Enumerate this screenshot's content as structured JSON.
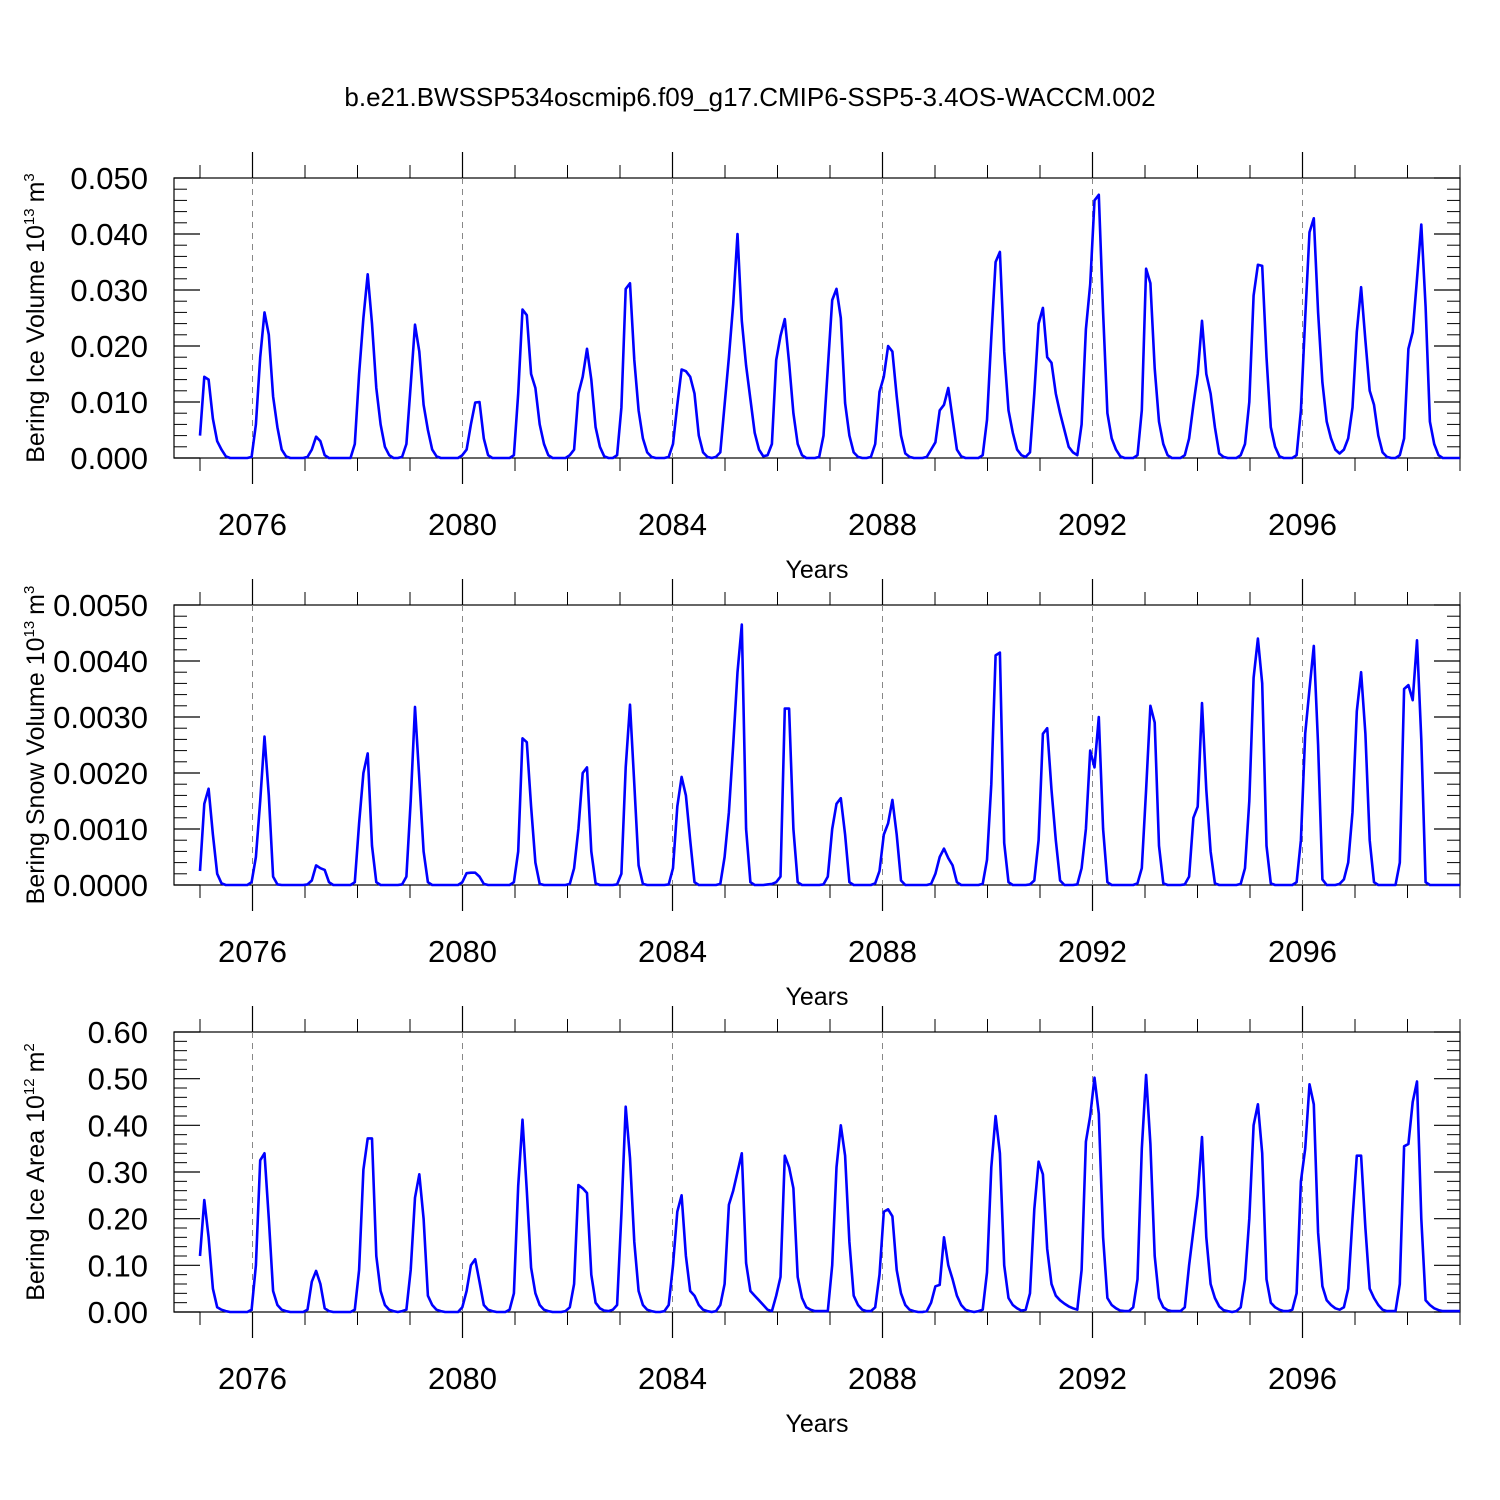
{
  "title": "b.e21.BWSSP534oscmip6.f09_g17.CMIP6-SSP5-3.4OS-WACCM.002",
  "chart_data": [
    {
      "type": "line",
      "ylabel_main": "Bering Ice Volume 10",
      "ylabel_exp": "13",
      "ylabel_unit": "m",
      "ylabel_unit_exp": "3",
      "xlabel": "Years",
      "x_start": 2075,
      "x_end": 2099,
      "xticks": [
        "2076",
        "2080",
        "2084",
        "2088",
        "2092",
        "2096"
      ],
      "yticks": [
        "0.000",
        "0.010",
        "0.020",
        "0.030",
        "0.040",
        "0.050"
      ],
      "ylim": [
        0,
        0.05
      ],
      "grid": "dashed vertical lines at labeled years",
      "series": [
        {
          "color": "#0000ff",
          "values": [
            0.004,
            0.0145,
            0.014,
            0.007,
            0.003,
            0.0015,
            0.0003,
            0,
            0,
            0,
            0,
            0,
            0.0002,
            0.006,
            0.018,
            0.026,
            0.022,
            0.011,
            0.0055,
            0.0015,
            0.0003,
            0,
            0,
            0,
            0,
            0.0002,
            0.0015,
            0.0038,
            0.003,
            0.0005,
            0,
            0,
            0,
            0,
            0,
            0,
            0.0025,
            0.015,
            0.025,
            0.0328,
            0.024,
            0.0125,
            0.006,
            0.002,
            0.0005,
            0,
            0,
            0.0002,
            0.0025,
            0.013,
            0.0238,
            0.019,
            0.0095,
            0.005,
            0.0015,
            0.0003,
            0,
            0,
            0,
            0,
            0,
            0.0005,
            0.0015,
            0.006,
            0.0099,
            0.01,
            0.0035,
            0.0005,
            0,
            0,
            0,
            0,
            0,
            0.0005,
            0.0115,
            0.0265,
            0.0255,
            0.015,
            0.0125,
            0.006,
            0.0025,
            0.0005,
            0,
            0,
            0,
            0,
            0.0005,
            0.0015,
            0.0115,
            0.0145,
            0.0195,
            0.014,
            0.0055,
            0.002,
            0.0003,
            0,
            0,
            0.0005,
            0.009,
            0.0302,
            0.0312,
            0.0175,
            0.0085,
            0.0035,
            0.001,
            0.0002,
            0,
            0,
            0,
            0.0002,
            0.0025,
            0.0095,
            0.0158,
            0.0155,
            0.0145,
            0.0115,
            0.004,
            0.001,
            0.0002,
            0,
            0.0002,
            0.001,
            0.0095,
            0.018,
            0.0275,
            0.04,
            0.0245,
            0.0165,
            0.0105,
            0.0045,
            0.0015,
            0.0003,
            0.0005,
            0.0025,
            0.0175,
            0.0218,
            0.0248,
            0.017,
            0.008,
            0.0025,
            0.0005,
            0,
            0,
            0,
            0.0002,
            0.004,
            0.016,
            0.0282,
            0.0302,
            0.025,
            0.0098,
            0.004,
            0.001,
            0.0002,
            0,
            0,
            0.0002,
            0.0025,
            0.0118,
            0.0145,
            0.02,
            0.019,
            0.011,
            0.004,
            0.0008,
            0.0002,
            0,
            0,
            0,
            0.0002,
            0.0015,
            0.0028,
            0.0085,
            0.0095,
            0.0125,
            0.007,
            0.0015,
            0.0003,
            0,
            0,
            0,
            0,
            0.0005,
            0.0068,
            0.0215,
            0.035,
            0.0368,
            0.019,
            0.0085,
            0.0045,
            0.0015,
            0.0005,
            0.0002,
            0.001,
            0.0115,
            0.024,
            0.0268,
            0.018,
            0.017,
            0.0115,
            0.008,
            0.005,
            0.002,
            0.001,
            0.0005,
            0.006,
            0.023,
            0.031,
            0.046,
            0.047,
            0.026,
            0.008,
            0.0035,
            0.0015,
            0.0003,
            0,
            0,
            0,
            0.0005,
            0.0085,
            0.0338,
            0.0312,
            0.016,
            0.0065,
            0.0025,
            0.0005,
            0,
            0,
            0,
            0.0005,
            0.0035,
            0.0095,
            0.015,
            0.0245,
            0.015,
            0.0115,
            0.0055,
            0.0008,
            0.0002,
            0,
            0,
            0,
            0.0005,
            0.0025,
            0.01,
            0.029,
            0.0345,
            0.0343,
            0.018,
            0.0055,
            0.002,
            0.0003,
            0,
            0,
            0,
            0.0005,
            0.0085,
            0.025,
            0.0403,
            0.0428,
            0.026,
            0.0135,
            0.0065,
            0.0035,
            0.0015,
            0.0008,
            0.0015,
            0.0035,
            0.009,
            0.0225,
            0.0305,
            0.021,
            0.012,
            0.0095,
            0.004,
            0.001,
            0.0002,
            0,
            0,
            0.0005,
            0.0035,
            0.0195,
            0.0225,
            0.032,
            0.0417,
            0.027,
            0.0065,
            0.0025,
            0.0005,
            0,
            0,
            0,
            0,
            0
          ]
        }
      ]
    },
    {
      "type": "line",
      "ylabel_main": "Bering Snow Volume 10",
      "ylabel_exp": "13",
      "ylabel_unit": "m",
      "ylabel_unit_exp": "3",
      "xlabel": "Years",
      "x_start": 2075,
      "x_end": 2099,
      "xticks": [
        "2076",
        "2080",
        "2084",
        "2088",
        "2092",
        "2096"
      ],
      "yticks": [
        "0.0000",
        "0.0010",
        "0.0020",
        "0.0030",
        "0.0040",
        "0.0050"
      ],
      "ylim": [
        0,
        0.005
      ],
      "grid": "dashed vertical lines at labeled years",
      "series": [
        {
          "color": "#0000ff",
          "values": [
            0.00025,
            0.00145,
            0.00172,
            0.0009,
            0.0002,
            3e-05,
            0,
            0,
            0,
            0,
            0,
            0,
            5e-05,
            0.0005,
            0.0015,
            0.00265,
            0.0016,
            0.00015,
            1e-05,
            0,
            0,
            0,
            0,
            0,
            0,
            1e-05,
            8e-05,
            0.00035,
            0.0003,
            0.00027,
            5e-05,
            0,
            0,
            0,
            0,
            0,
            5e-05,
            0.0011,
            0.002,
            0.00235,
            0.0007,
            5e-05,
            0,
            0,
            0,
            0,
            0,
            1e-05,
            0.00015,
            0.0015,
            0.00318,
            0.0019,
            0.0006,
            5e-05,
            0,
            0,
            0,
            0,
            0,
            0,
            0,
            5e-05,
            0.00021,
            0.00022,
            0.00022,
            0.00015,
            2e-05,
            0,
            0,
            0,
            0,
            0,
            0,
            5e-05,
            0.0006,
            0.00262,
            0.00255,
            0.0014,
            0.0004,
            2e-05,
            0,
            0,
            0,
            0,
            0,
            0,
            2e-05,
            0.0003,
            0.001,
            0.002,
            0.0021,
            0.0006,
            3e-05,
            0,
            0,
            0,
            0,
            1e-05,
            0.0002,
            0.0021,
            0.00322,
            0.0018,
            0.00035,
            2e-05,
            0,
            0,
            0,
            0,
            0,
            1e-05,
            0.0003,
            0.0014,
            0.00193,
            0.0016,
            0.0008,
            5e-05,
            0,
            0,
            0,
            0,
            0,
            2e-05,
            0.0005,
            0.0013,
            0.0025,
            0.0038,
            0.00465,
            0.001,
            5e-05,
            0,
            0,
            0,
            1e-05,
            2e-05,
            5e-05,
            0.00015,
            0.00315,
            0.00315,
            0.001,
            5e-05,
            0,
            0,
            0,
            0,
            0,
            1e-05,
            0.00015,
            0.001,
            0.00145,
            0.00155,
            0.0009,
            5e-05,
            0,
            0,
            0,
            0,
            0,
            3e-05,
            0.00025,
            0.0009,
            0.0011,
            0.00152,
            0.0009,
            8e-05,
            0,
            0,
            0,
            0,
            0,
            0,
            2e-05,
            0.0002,
            0.0005,
            0.00065,
            0.00048,
            0.00035,
            5e-05,
            0,
            0,
            0,
            0,
            0,
            2e-05,
            0.00045,
            0.0018,
            0.0041,
            0.00415,
            0.00075,
            5e-05,
            0,
            0,
            0,
            0,
            1e-05,
            8e-05,
            0.0008,
            0.0027,
            0.0028,
            0.0017,
            0.0008,
            8e-05,
            0,
            0,
            0,
            1e-05,
            0.0003,
            0.001,
            0.0024,
            0.0021,
            0.003,
            0.001,
            5e-05,
            0,
            0,
            0,
            0,
            0,
            0,
            3e-05,
            0.0003,
            0.0017,
            0.0032,
            0.0029,
            0.0007,
            3e-05,
            0,
            0,
            0,
            0,
            1e-05,
            0.00015,
            0.0012,
            0.0014,
            0.00325,
            0.0017,
            0.0006,
            3e-05,
            0,
            0,
            0,
            0,
            0,
            2e-05,
            0.0003,
            0.0015,
            0.0037,
            0.0044,
            0.0036,
            0.0007,
            3e-05,
            0,
            0,
            0,
            0,
            0,
            5e-05,
            0.0008,
            0.0027,
            0.0035,
            0.00427,
            0.0025,
            0.0001,
            0,
            0,
            0,
            2e-05,
            0.0001,
            0.0004,
            0.0013,
            0.0031,
            0.0038,
            0.0027,
            0.0008,
            5e-05,
            0,
            0,
            0,
            0,
            0,
            0.0004,
            0.0035,
            0.00357,
            0.0033,
            0.00437,
            0.0026,
            5e-05,
            0,
            0,
            0,
            0,
            0,
            0,
            0,
            0
          ]
        }
      ]
    },
    {
      "type": "line",
      "ylabel_main": "Bering Ice Area 10",
      "ylabel_exp": "12",
      "ylabel_unit": "m",
      "ylabel_unit_exp": "2",
      "xlabel": "Years",
      "x_start": 2075,
      "x_end": 2099,
      "xticks": [
        "2076",
        "2080",
        "2084",
        "2088",
        "2092",
        "2096"
      ],
      "yticks": [
        "0.00",
        "0.10",
        "0.20",
        "0.30",
        "0.40",
        "0.50",
        "0.60"
      ],
      "ylim": [
        0,
        0.6
      ],
      "grid": "dashed vertical lines at labeled years",
      "series": [
        {
          "color": "#0000ff",
          "values": [
            0.12,
            0.24,
            0.16,
            0.05,
            0.01,
            0.005,
            0.002,
            0,
            0,
            0,
            0,
            0,
            0.005,
            0.1,
            0.325,
            0.34,
            0.2,
            0.045,
            0.015,
            0.005,
            0.002,
            0,
            0,
            0,
            0,
            0.005,
            0.065,
            0.088,
            0.06,
            0.008,
            0.002,
            0,
            0,
            0,
            0,
            0,
            0.005,
            0.09,
            0.305,
            0.372,
            0.372,
            0.12,
            0.045,
            0.015,
            0.005,
            0.002,
            0,
            0.002,
            0.005,
            0.09,
            0.245,
            0.295,
            0.2,
            0.035,
            0.015,
            0.005,
            0.002,
            0,
            0,
            0,
            0,
            0.01,
            0.045,
            0.1,
            0.113,
            0.065,
            0.015,
            0.005,
            0.002,
            0,
            0,
            0,
            0.005,
            0.04,
            0.27,
            0.412,
            0.26,
            0.095,
            0.04,
            0.015,
            0.005,
            0.002,
            0,
            0,
            0,
            0.002,
            0.01,
            0.06,
            0.272,
            0.265,
            0.255,
            0.08,
            0.02,
            0.008,
            0.003,
            0.002,
            0.005,
            0.015,
            0.21,
            0.44,
            0.33,
            0.15,
            0.045,
            0.015,
            0.005,
            0.002,
            0,
            0,
            0.002,
            0.015,
            0.1,
            0.215,
            0.25,
            0.12,
            0.045,
            0.035,
            0.015,
            0.005,
            0.002,
            0,
            0.002,
            0.015,
            0.06,
            0.23,
            0.26,
            0.3,
            0.34,
            0.105,
            0.045,
            0.035,
            0.025,
            0.015,
            0.005,
            0.002,
            0.035,
            0.075,
            0.335,
            0.31,
            0.265,
            0.075,
            0.03,
            0.01,
            0.005,
            0.002,
            0.002,
            0.002,
            0.002,
            0.1,
            0.31,
            0.4,
            0.335,
            0.15,
            0.035,
            0.015,
            0.005,
            0.002,
            0.002,
            0.01,
            0.08,
            0.215,
            0.22,
            0.205,
            0.09,
            0.04,
            0.015,
            0.005,
            0.002,
            0,
            0,
            0.002,
            0.02,
            0.055,
            0.058,
            0.16,
            0.1,
            0.07,
            0.035,
            0.015,
            0.005,
            0.002,
            0,
            0.002,
            0.005,
            0.085,
            0.31,
            0.42,
            0.34,
            0.1,
            0.03,
            0.015,
            0.008,
            0.003,
            0.005,
            0.04,
            0.22,
            0.322,
            0.295,
            0.135,
            0.06,
            0.035,
            0.025,
            0.018,
            0.012,
            0.008,
            0.005,
            0.09,
            0.365,
            0.42,
            0.502,
            0.425,
            0.16,
            0.03,
            0.015,
            0.008,
            0.003,
            0.002,
            0.002,
            0.01,
            0.07,
            0.35,
            0.508,
            0.36,
            0.12,
            0.03,
            0.01,
            0.004,
            0.002,
            0.002,
            0.002,
            0.01,
            0.1,
            0.175,
            0.25,
            0.375,
            0.16,
            0.06,
            0.03,
            0.012,
            0.004,
            0.002,
            0,
            0.002,
            0.01,
            0.07,
            0.2,
            0.4,
            0.445,
            0.34,
            0.07,
            0.02,
            0.01,
            0.005,
            0.002,
            0.002,
            0.005,
            0.04,
            0.28,
            0.35,
            0.488,
            0.445,
            0.17,
            0.055,
            0.025,
            0.015,
            0.008,
            0.005,
            0.01,
            0.05,
            0.2,
            0.335,
            0.335,
            0.18,
            0.05,
            0.03,
            0.015,
            0.005,
            0.002,
            0.002,
            0.002,
            0.06,
            0.355,
            0.36,
            0.45,
            0.494,
            0.2,
            0.025,
            0.015,
            0.008,
            0.004,
            0.002,
            0.002,
            0.002,
            0.002,
            0.002
          ]
        }
      ]
    }
  ]
}
